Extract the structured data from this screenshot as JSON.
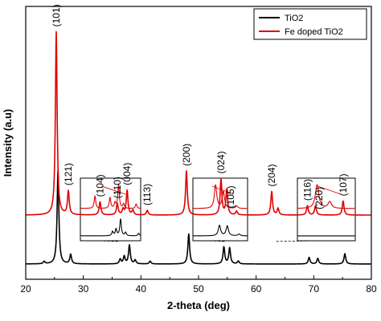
{
  "chart_data": {
    "type": "line",
    "xlabel": "2-theta (deg)",
    "ylabel": "Intensity (a.u)",
    "xlim": [
      20,
      80
    ],
    "x_ticks": [
      20,
      30,
      40,
      50,
      60,
      70,
      80
    ],
    "grid": false,
    "legend_position": "top-right",
    "series": [
      {
        "name": "TiO2",
        "color": "#000000",
        "offset": 0,
        "baseline": 6,
        "peaks": [
          [
            23.2,
            2.5
          ],
          [
            25.6,
            100
          ],
          [
            27.8,
            10
          ],
          [
            36.4,
            5
          ],
          [
            37.1,
            8
          ],
          [
            38.0,
            20
          ],
          [
            39.0,
            4
          ],
          [
            41.6,
            3
          ],
          [
            48.3,
            32
          ],
          [
            54.4,
            18
          ],
          [
            55.4,
            17
          ],
          [
            56.9,
            3
          ],
          [
            69.2,
            7
          ],
          [
            70.7,
            6
          ],
          [
            75.4,
            11
          ]
        ]
      },
      {
        "name": "Fe doped TiO2",
        "color": "#e00000",
        "offset": 52,
        "baseline": 6,
        "peaks": [
          [
            25.3,
            195
          ],
          [
            27.4,
            25
          ],
          [
            32.9,
            14
          ],
          [
            35.9,
            12
          ],
          [
            36.9,
            6
          ],
          [
            37.6,
            26
          ],
          [
            38.6,
            5
          ],
          [
            41.1,
            5
          ],
          [
            47.9,
            47
          ],
          [
            53.9,
            38
          ],
          [
            54.9,
            27
          ],
          [
            56.6,
            4
          ],
          [
            62.7,
            25
          ],
          [
            63.8,
            7
          ],
          [
            68.9,
            10
          ],
          [
            70.3,
            10
          ],
          [
            75.1,
            15
          ]
        ]
      }
    ],
    "peak_labels": [
      {
        "text": "(101)",
        "x": 25.3
      },
      {
        "text": "(121)",
        "x": 27.4
      },
      {
        "text": "(104)",
        "x": 32.9
      },
      {
        "text": "(110)",
        "x": 35.9
      },
      {
        "text": "(004)",
        "x": 37.6
      },
      {
        "text": "(113)",
        "x": 41.1
      },
      {
        "text": "(200)",
        "x": 47.9
      },
      {
        "text": "(024)",
        "x": 53.9
      },
      {
        "text": "(105)",
        "x": 55.6
      },
      {
        "text": "(204)",
        "x": 62.7
      },
      {
        "text": "(116)",
        "x": 68.9
      },
      {
        "text": "(220)",
        "x": 70.9
      },
      {
        "text": "(107)",
        "x": 75.1
      }
    ],
    "insets": [
      {
        "zoom_range": [
          30,
          42
        ]
      },
      {
        "zoom_range": [
          51,
          58
        ]
      },
      {
        "zoom_range": [
          61,
          66
        ]
      }
    ]
  }
}
